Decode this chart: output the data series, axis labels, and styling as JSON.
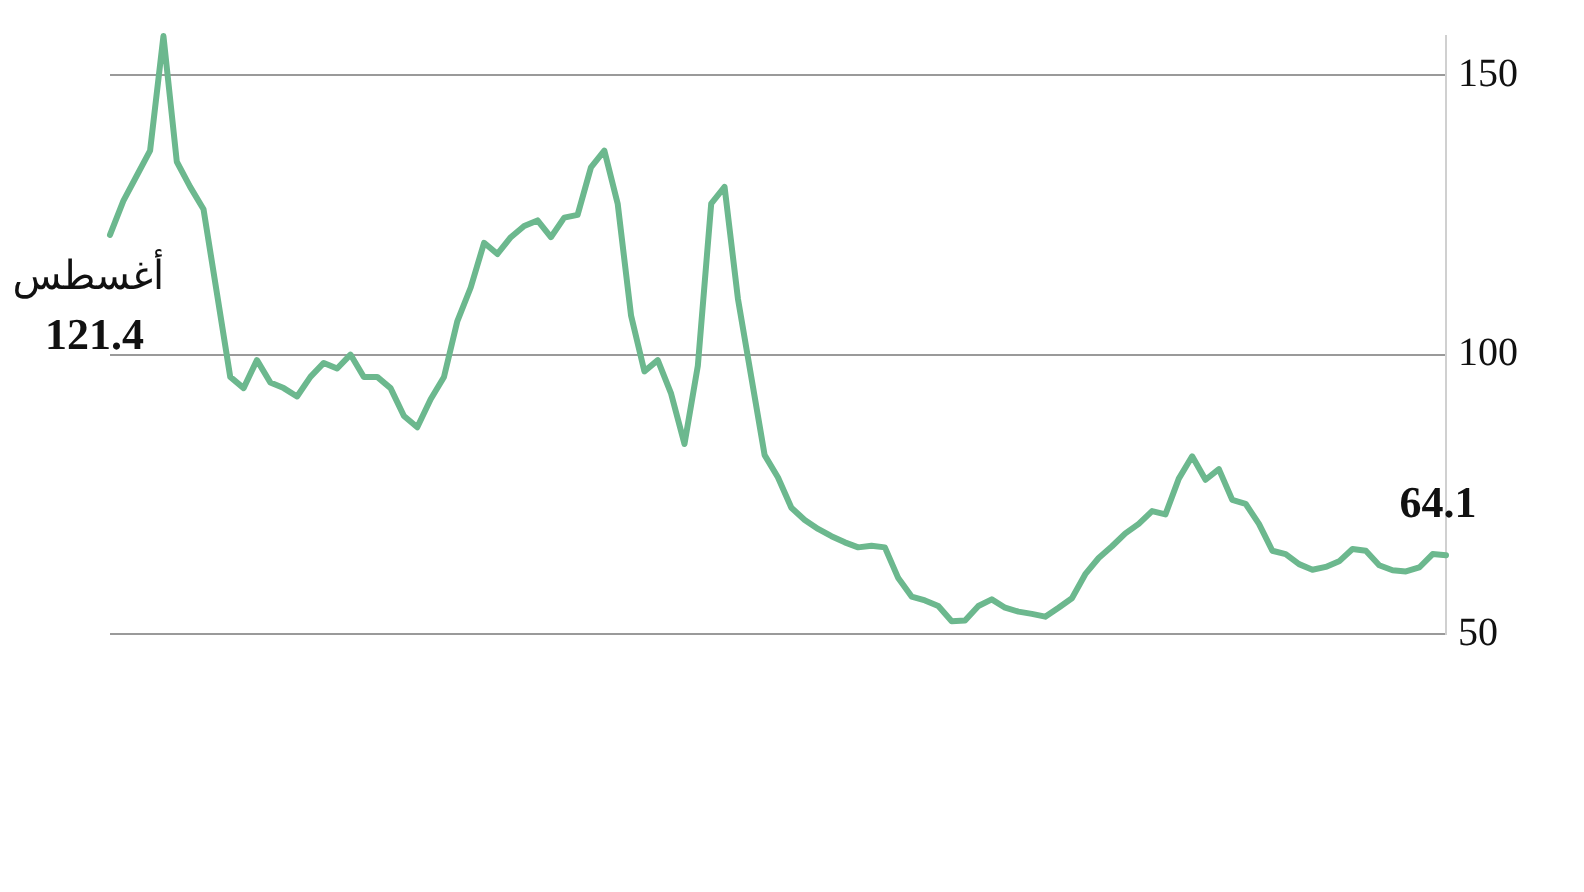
{
  "chart_data": {
    "type": "line",
    "categories": [
      null,
      null,
      null,
      null,
      null,
      null,
      null,
      null,
      null,
      null,
      null,
      null,
      null,
      null,
      null,
      null,
      null,
      null,
      null,
      null,
      null,
      null,
      null,
      null,
      null,
      null,
      null,
      null,
      null,
      null,
      null,
      null,
      null,
      null,
      null,
      null,
      null,
      null,
      null,
      null,
      null,
      null,
      null,
      null,
      null,
      null,
      null,
      null,
      null,
      null,
      null,
      null,
      null,
      null,
      null,
      null,
      null,
      null,
      null,
      null,
      null,
      null,
      null,
      null,
      null,
      null,
      null,
      null,
      null,
      null,
      null,
      null,
      null,
      null,
      null,
      null,
      null,
      null,
      null,
      null,
      null,
      null,
      null,
      null,
      null,
      null,
      null,
      null,
      null,
      null,
      null,
      null,
      null,
      null,
      null,
      null,
      null,
      null,
      null,
      null,
      null
    ],
    "series": [
      {
        "color": "#6cb88e",
        "values": [
          121.4,
          127.5,
          132,
          136.5,
          157,
          134.5,
          130,
          126,
          111,
          96,
          94,
          99,
          95,
          94,
          92.5,
          96,
          98.5,
          97.5,
          100,
          96,
          96,
          94,
          89,
          87,
          92,
          96,
          106,
          112,
          120,
          118,
          121,
          123,
          124,
          121,
          124.5,
          125,
          133.5,
          136.5,
          127,
          107,
          97,
          99,
          93,
          84,
          98,
          127,
          130,
          110,
          96,
          82,
          78,
          72.6,
          70.4,
          68.8,
          67.5,
          66.4,
          65.5,
          65.8,
          65.5,
          60,
          56.7,
          56,
          55,
          52.3,
          52.4,
          55,
          56.2,
          54.7,
          54,
          53.6,
          53.1,
          54.7,
          56.4,
          60.7,
          63.6,
          65.7,
          68,
          69.7,
          72,
          71.4,
          77.8,
          81.8,
          77.6,
          79.5,
          74,
          73.3,
          69.7,
          64.9,
          64.3,
          62.5,
          61.5,
          62,
          63,
          65.2,
          64.9,
          62.3,
          61.4,
          61.2,
          61.9,
          64.3,
          64.1
        ],
        "value_labels": [
          "121.4",
          null,
          null,
          null,
          null,
          null,
          null,
          null,
          null,
          null,
          null,
          null,
          null,
          null,
          null,
          null,
          null,
          null,
          null,
          null,
          null,
          null,
          null,
          null,
          null,
          null,
          null,
          null,
          null,
          null,
          null,
          null,
          null,
          null,
          null,
          null,
          null,
          null,
          null,
          null,
          null,
          null,
          null,
          null,
          null,
          null,
          null,
          null,
          null,
          null,
          null,
          null,
          null,
          null,
          null,
          null,
          null,
          null,
          null,
          null,
          null,
          null,
          null,
          null,
          null,
          null,
          null,
          null,
          null,
          null,
          null,
          null,
          null,
          null,
          null,
          null,
          null,
          null,
          null,
          null,
          null,
          null,
          null,
          null,
          null,
          null,
          null,
          null,
          null,
          null,
          null,
          null,
          null,
          null,
          null,
          null,
          null,
          null,
          null,
          null,
          "64.1"
        ]
      }
    ],
    "ylim": [
      50,
      157
    ],
    "yticks": [
      50,
      100,
      150
    ],
    "grid": "y",
    "tick_labels": "y",
    "marker": "none",
    "line_style": "solid",
    "legend": false,
    "annotations": [
      "أغسطس"
    ]
  }
}
